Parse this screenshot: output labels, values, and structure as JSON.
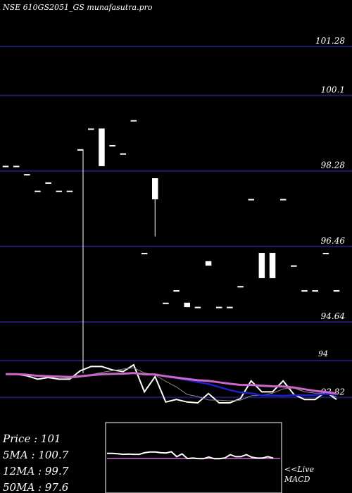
{
  "chart_data": {
    "type": "candlestick",
    "title": "NSE 610GS2051_GS munafasutra.pro",
    "price_axis": {
      "ticks": [
        101.28,
        100.1,
        98.28,
        96.46,
        94.64,
        92.82
      ],
      "ylim": [
        91.4,
        102.2
      ]
    },
    "candles": [
      {
        "open": 98.4,
        "high": 98.4,
        "low": 98.4,
        "close": 98.4
      },
      {
        "open": 98.4,
        "high": 98.4,
        "low": 98.4,
        "close": 98.4
      },
      {
        "open": 98.2,
        "high": 98.2,
        "low": 98.2,
        "close": 98.2
      },
      {
        "open": 97.8,
        "high": 97.8,
        "low": 97.8,
        "close": 97.8
      },
      {
        "open": 98.0,
        "high": 98.0,
        "low": 98.0,
        "close": 98.0
      },
      {
        "open": 97.8,
        "high": 97.8,
        "low": 97.8,
        "close": 97.8
      },
      {
        "open": 97.8,
        "high": 97.8,
        "low": 97.8,
        "close": 97.8
      },
      {
        "open": 98.8,
        "high": 98.8,
        "low": 98.8,
        "close": 98.8
      },
      {
        "open": 99.3,
        "high": 99.3,
        "low": 99.3,
        "close": 99.3
      },
      {
        "open": 98.4,
        "high": 99.3,
        "low": 98.4,
        "close": 99.3
      },
      {
        "open": 98.9,
        "high": 98.9,
        "low": 98.9,
        "close": 98.9
      },
      {
        "open": 98.7,
        "high": 98.7,
        "low": 98.7,
        "close": 98.7
      },
      {
        "open": 99.5,
        "high": 99.5,
        "low": 99.5,
        "close": 99.5
      },
      {
        "open": 96.3,
        "high": 96.3,
        "low": 96.3,
        "close": 96.3
      },
      {
        "open": 97.6,
        "high": 98.1,
        "low": 96.7,
        "close": 98.1
      },
      {
        "open": 95.1,
        "high": 95.1,
        "low": 95.1,
        "close": 95.1
      },
      {
        "open": 95.4,
        "high": 95.4,
        "low": 95.4,
        "close": 95.4
      },
      {
        "open": 95.0,
        "high": 95.1,
        "low": 95.0,
        "close": 95.1
      },
      {
        "open": 95.0,
        "high": 95.0,
        "low": 95.0,
        "close": 95.0
      },
      {
        "open": 96.0,
        "high": 96.1,
        "low": 96.0,
        "close": 96.1
      },
      {
        "open": 95.0,
        "high": 95.0,
        "low": 95.0,
        "close": 95.0
      },
      {
        "open": 95.0,
        "high": 95.0,
        "low": 95.0,
        "close": 95.0
      },
      {
        "open": 95.5,
        "high": 95.5,
        "low": 95.5,
        "close": 95.5
      },
      {
        "open": 97.6,
        "high": 97.6,
        "low": 97.6,
        "close": 97.6
      },
      {
        "open": 95.7,
        "high": 96.3,
        "low": 95.7,
        "close": 96.3
      },
      {
        "open": 95.7,
        "high": 96.3,
        "low": 95.7,
        "close": 96.3
      },
      {
        "open": 97.6,
        "high": 97.6,
        "low": 97.6,
        "close": 97.6
      },
      {
        "open": 96.0,
        "high": 96.0,
        "low": 96.0,
        "close": 96.0
      },
      {
        "open": 95.4,
        "high": 95.4,
        "low": 95.4,
        "close": 95.4
      },
      {
        "open": 95.4,
        "high": 95.4,
        "low": 95.4,
        "close": 95.4
      },
      {
        "open": 96.3,
        "high": 96.3,
        "low": 96.3,
        "close": 96.3
      },
      {
        "open": 95.4,
        "high": 95.4,
        "low": 95.4,
        "close": 95.4
      }
    ],
    "info": {
      "price": "Price   : 101",
      "ma5": "5MA : 100.7",
      "ma12": "12MA : 99.7",
      "ma50": "50MA : 97.6"
    },
    "live_label": "<<Live",
    "macd_label": "MACD",
    "indicator_value_label": "94"
  }
}
